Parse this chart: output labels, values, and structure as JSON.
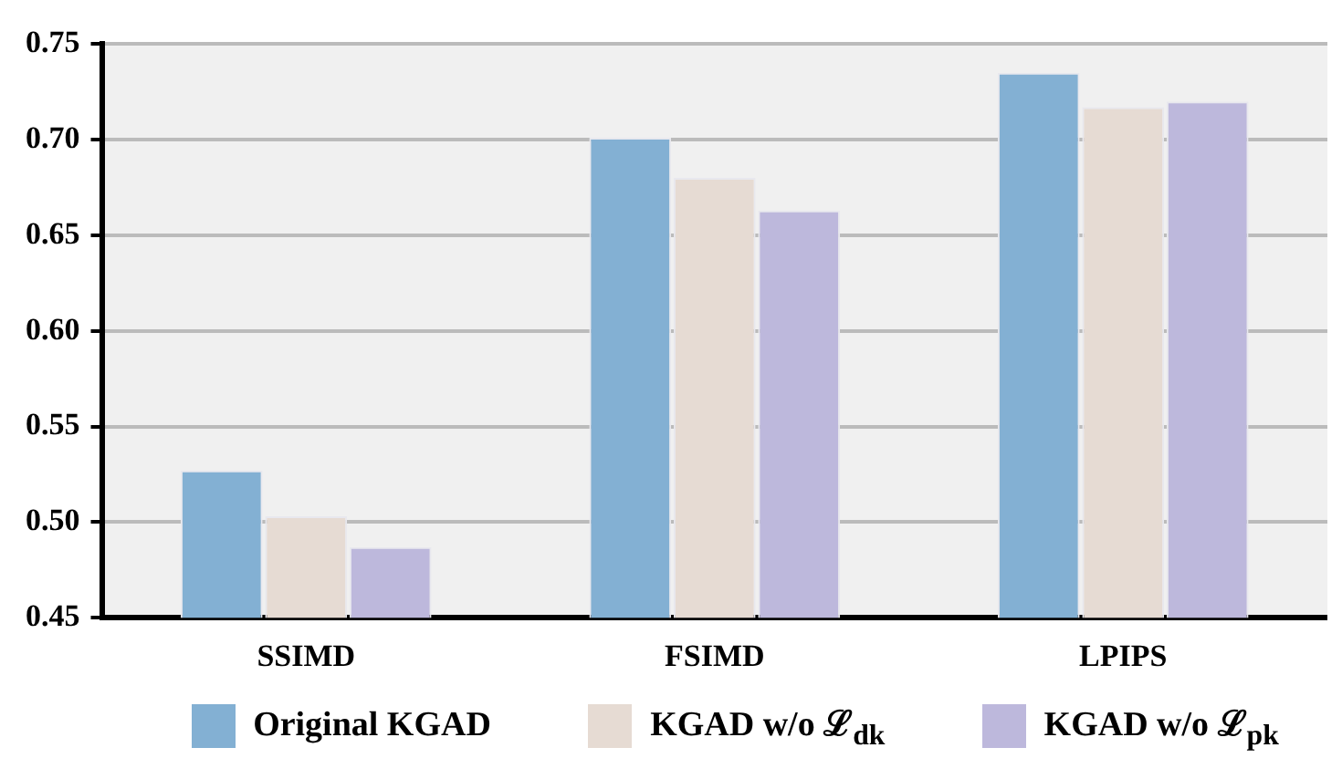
{
  "chart_data": {
    "type": "bar",
    "categories": [
      "SSIMD",
      "FSIMD",
      "LPIPS"
    ],
    "series": [
      {
        "name": "Original KGAD",
        "color": "#83b0d3",
        "values": [
          0.527,
          0.701,
          0.735
        ]
      },
      {
        "name": "KGAD w/o ℒ$_{dk}$",
        "color": "#e6dbd3",
        "values": [
          0.503,
          0.68,
          0.717
        ]
      },
      {
        "name": "KGAD w/o ℒ$_{pk}$",
        "color": "#bdb8dc",
        "values": [
          0.487,
          0.663,
          0.72
        ]
      }
    ],
    "ylim": [
      0.45,
      0.75
    ],
    "yticks": [
      {
        "value": 0.45,
        "label": "0.45"
      },
      {
        "value": 0.5,
        "label": "0.50"
      },
      {
        "value": 0.55,
        "label": "0.55"
      },
      {
        "value": 0.6,
        "label": "0.60"
      },
      {
        "value": 0.65,
        "label": "0.65"
      },
      {
        "value": 0.7,
        "label": "0.70"
      },
      {
        "value": 0.75,
        "label": "0.75"
      }
    ],
    "grid": "y",
    "legend": "bottom"
  }
}
